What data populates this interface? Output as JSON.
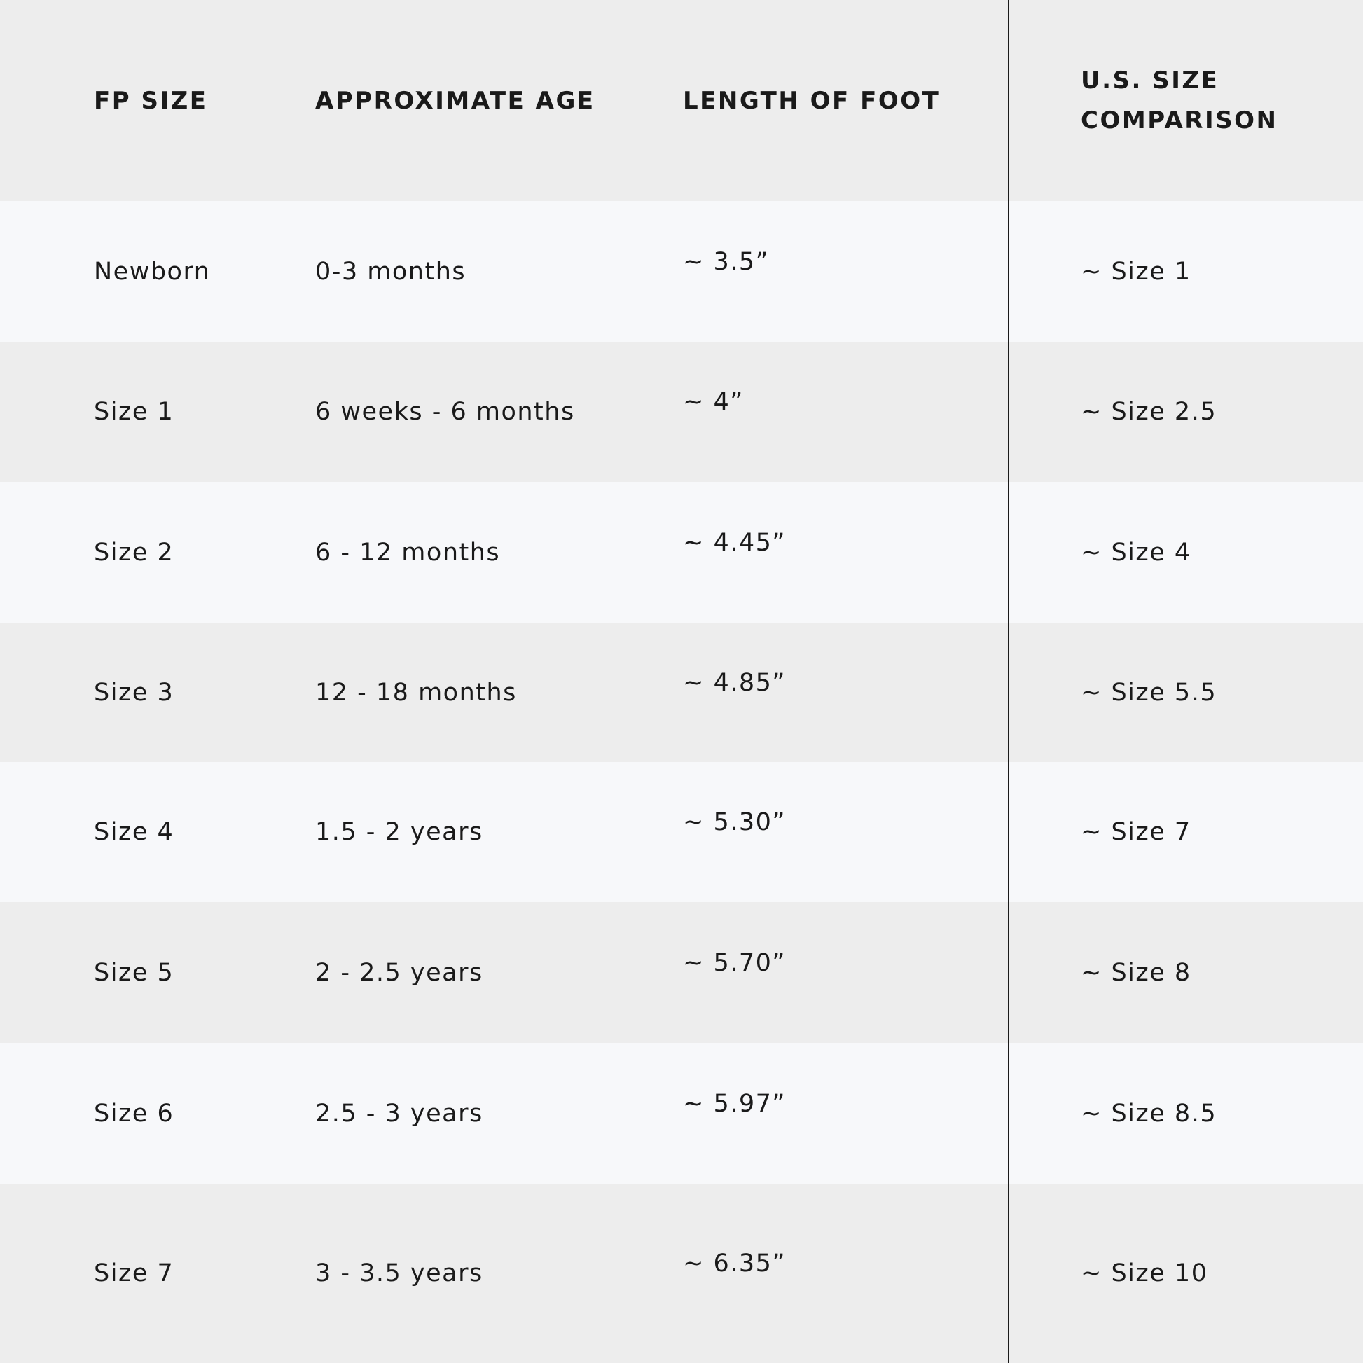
{
  "table": {
    "headers": [
      "FP SIZE",
      "APPROXIMATE AGE",
      "LENGTH OF FOOT",
      "U.S. SIZE COMPARISON"
    ],
    "rows": [
      [
        "Newborn",
        "0-3 months",
        "~ 3.5”",
        "~ Size 1"
      ],
      [
        "Size 1",
        "6 weeks - 6 months",
        "~ 4”",
        "~ Size 2.5"
      ],
      [
        "Size 2",
        "6 - 12 months",
        "~ 4.45”",
        "~ Size 4"
      ],
      [
        "Size 3",
        "12 - 18 months",
        "~ 4.85”",
        "~ Size 5.5"
      ],
      [
        "Size 4",
        "1.5 - 2 years",
        "~ 5.30”",
        "~ Size 7"
      ],
      [
        "Size 5",
        "2 - 2.5 years",
        "~ 5.70”",
        "~ Size 8"
      ],
      [
        "Size 6",
        "2.5 - 3 years",
        "~ 5.97”",
        "~ Size 8.5"
      ],
      [
        "Size 7",
        "3 - 3.5 years",
        "~ 6.35”",
        "~ Size 10"
      ]
    ]
  },
  "colors": {
    "header_bg": "#ededed",
    "row_light": "#f7f8fa",
    "row_dark": "#ededed",
    "text": "#1a1a1a"
  }
}
